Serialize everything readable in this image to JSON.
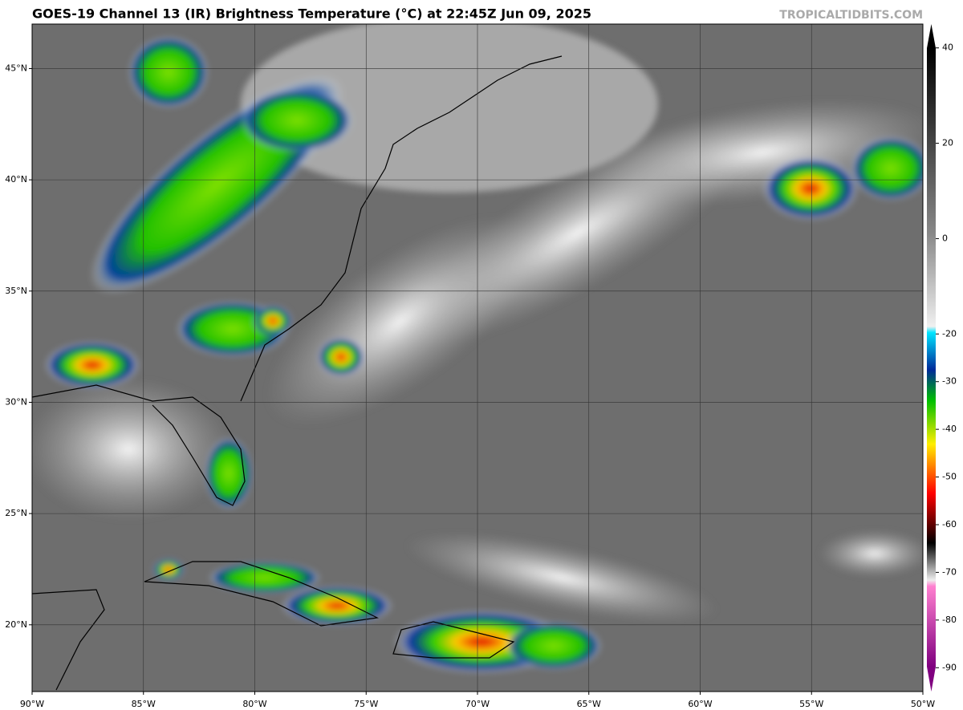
{
  "title": "GOES-19 Channel 13 (IR) Brightness Temperature (°C) at 22:45Z Jun 09, 2025",
  "watermark": "TROPICALTIDBITS.COM",
  "map": {
    "lon_range": [
      -90,
      -50
    ],
    "lat_range": [
      17,
      47
    ],
    "lon_ticks": [
      {
        "value": -90,
        "label": "90°W"
      },
      {
        "value": -85,
        "label": "85°W"
      },
      {
        "value": -80,
        "label": "80°W"
      },
      {
        "value": -75,
        "label": "75°W"
      },
      {
        "value": -70,
        "label": "70°W"
      },
      {
        "value": -65,
        "label": "65°W"
      },
      {
        "value": -60,
        "label": "60°W"
      },
      {
        "value": -55,
        "label": "55°W"
      },
      {
        "value": -50,
        "label": "50°W"
      }
    ],
    "lat_ticks": [
      {
        "value": 20,
        "label": "20°N"
      },
      {
        "value": 25,
        "label": "25°N"
      },
      {
        "value": 30,
        "label": "30°N"
      },
      {
        "value": 35,
        "label": "35°N"
      },
      {
        "value": 40,
        "label": "40°N"
      },
      {
        "value": 45,
        "label": "45°N"
      }
    ]
  },
  "colorbar": {
    "range": [
      -95,
      45
    ],
    "ticks": [
      40,
      20,
      0,
      -20,
      -30,
      -40,
      -50,
      -60,
      -70,
      -80,
      -90
    ]
  }
}
